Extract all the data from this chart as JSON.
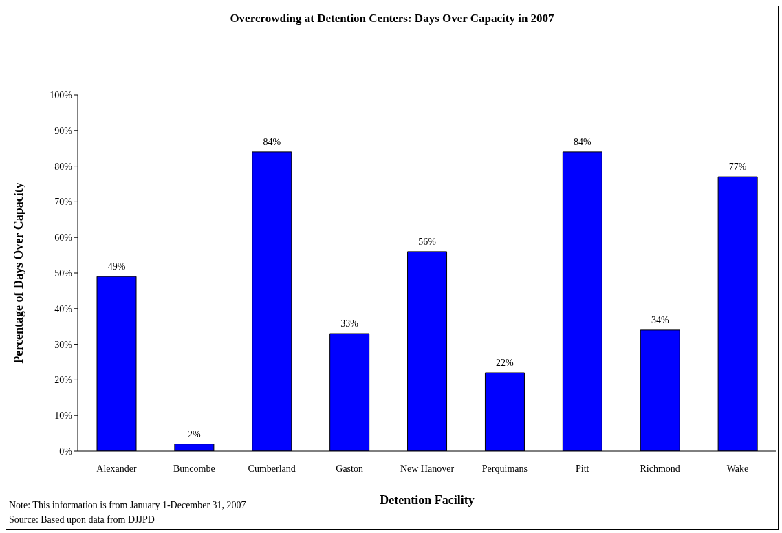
{
  "chart_data": {
    "type": "bar",
    "title": "Overcrowding at Detention Centers: Days Over Capacity in 2007",
    "xlabel": "Detention Facility",
    "ylabel": "Percentage of Days Over Capacity",
    "categories": [
      "Alexander",
      "Buncombe",
      "Cumberland",
      "Gaston",
      "New Hanover",
      "Perquimans",
      "Pitt",
      "Richmond",
      "Wake"
    ],
    "values": [
      49,
      2,
      84,
      33,
      56,
      22,
      84,
      34,
      77
    ],
    "value_labels": [
      "49%",
      "2%",
      "84%",
      "33%",
      "56%",
      "22%",
      "84%",
      "34%",
      "77%"
    ],
    "color": "#0000ff",
    "ylim": [
      0,
      100
    ],
    "yticks": [
      {
        "value": 0,
        "label": "0%"
      },
      {
        "value": 10,
        "label": "10%"
      },
      {
        "value": 20,
        "label": "20%"
      },
      {
        "value": 30,
        "label": "30%"
      },
      {
        "value": 40,
        "label": "40%"
      },
      {
        "value": 50,
        "label": "50%"
      },
      {
        "value": 60,
        "label": "60%"
      },
      {
        "value": 70,
        "label": "70%"
      },
      {
        "value": 80,
        "label": "80%"
      },
      {
        "value": 90,
        "label": "90%"
      },
      {
        "value": 100,
        "label": "100%"
      }
    ],
    "annotations": [
      "Note:  This information is from January 1-December 31, 2007",
      "Source: Based upon data from DJJPD"
    ]
  }
}
